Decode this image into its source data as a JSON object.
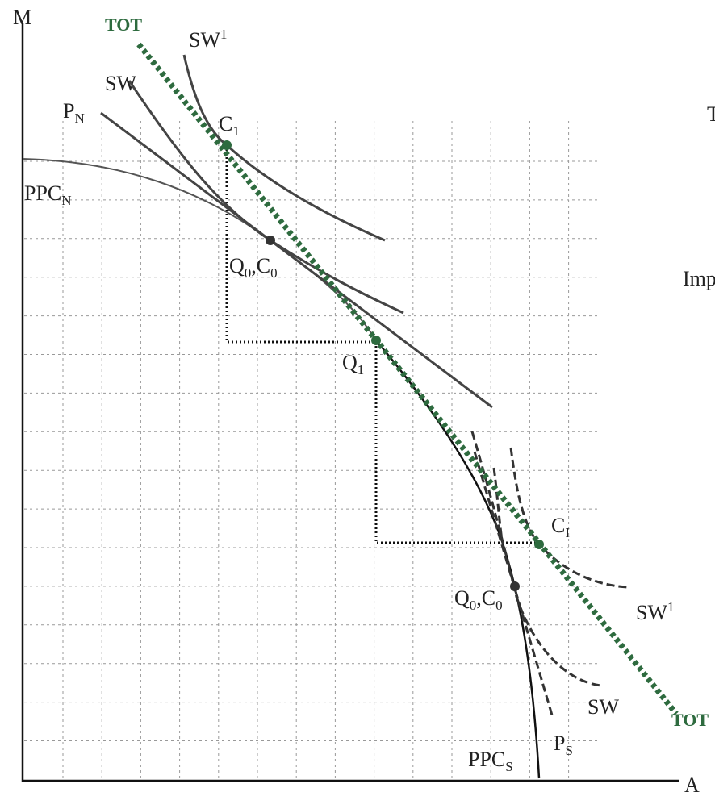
{
  "axes": {
    "y": "M",
    "x": "A"
  },
  "labels": [
    {
      "text": "TOT"
    },
    {
      "text": "SW",
      "sup": "1"
    },
    {
      "text": "SW"
    },
    {
      "text": "P",
      "sub": "N"
    },
    {
      "text": "C",
      "sub": "1"
    },
    {
      "text": "PPC",
      "sub": "N"
    },
    {
      "text": "Q",
      "sub": "0",
      "text2": ",C",
      "sub2": "0"
    },
    {
      "text": "Q",
      "sub": "1"
    },
    {
      "text": "T"
    },
    {
      "text": "Imp"
    },
    {
      "text": "C",
      "sub": "I"
    },
    {
      "text": "Q",
      "sub": "0",
      "text2": ",C",
      "sub2": "0"
    },
    {
      "text": "SW",
      "sup": "1"
    },
    {
      "text": "SW"
    },
    {
      "text": "TOT"
    },
    {
      "text": "P",
      "sub": "S"
    },
    {
      "text": "PPC",
      "sub": "S"
    }
  ]
}
